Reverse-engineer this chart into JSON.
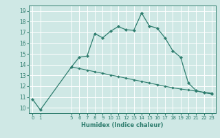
{
  "xlabel": "Humidex (Indice chaleur)",
  "background_color": "#cfe8e5",
  "grid_color": "#ffffff",
  "line_color": "#2e7d6e",
  "x_main": [
    0,
    1,
    5,
    6,
    7,
    8,
    9,
    10,
    11,
    12,
    13,
    14,
    15,
    16,
    17,
    18,
    19,
    20,
    21,
    22,
    23
  ],
  "y_main": [
    10.8,
    9.8,
    13.8,
    14.7,
    14.8,
    16.9,
    16.5,
    17.1,
    17.55,
    17.25,
    17.2,
    18.8,
    17.6,
    17.4,
    16.5,
    15.3,
    14.7,
    12.3,
    11.6,
    11.4,
    11.3
  ],
  "x_trend": [
    5,
    6,
    7,
    8,
    9,
    10,
    11,
    12,
    13,
    14,
    15,
    16,
    17,
    18,
    19,
    20,
    21,
    22,
    23
  ],
  "y_trend": [
    13.8,
    13.65,
    13.5,
    13.35,
    13.2,
    13.05,
    12.9,
    12.75,
    12.6,
    12.45,
    12.3,
    12.15,
    12.0,
    11.85,
    11.75,
    11.65,
    11.55,
    11.45,
    11.35
  ],
  "ylim": [
    9.5,
    19.5
  ],
  "xlim": [
    -0.5,
    23.5
  ],
  "yticks": [
    10,
    11,
    12,
    13,
    14,
    15,
    16,
    17,
    18,
    19
  ],
  "xticks": [
    0,
    1,
    5,
    6,
    7,
    8,
    9,
    10,
    11,
    12,
    13,
    14,
    15,
    16,
    17,
    18,
    19,
    20,
    21,
    22,
    23
  ]
}
